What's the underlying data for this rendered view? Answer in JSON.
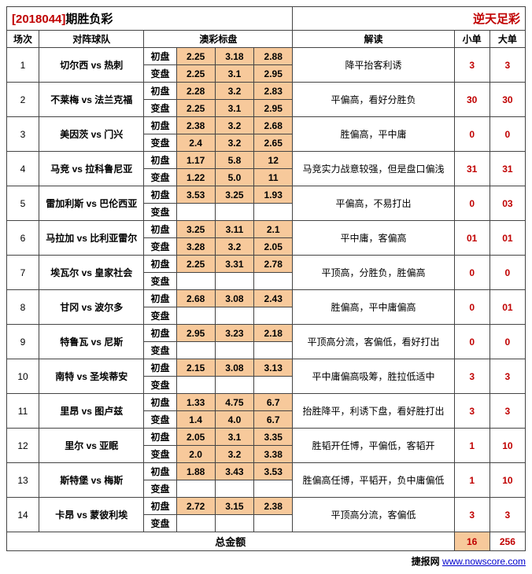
{
  "title": {
    "issue": "[2018044]",
    "suffix": "期胜负彩",
    "right": "逆天足彩"
  },
  "headers": {
    "match_no": "场次",
    "teams": "对阵球队",
    "odds": "澳彩标盘",
    "analysis": "解读",
    "small": "小单",
    "big": "大单"
  },
  "odds_labels": {
    "open": "初盘",
    "change": "变盘"
  },
  "total_label": "总金额",
  "total_small": "16",
  "total_big": "256",
  "footer": {
    "site": "捷报网",
    "url": "www.nowscore.com"
  },
  "colors": {
    "odds_bg": "#f7c99b",
    "red": "#c00000"
  },
  "col_widths": {
    "no": 40,
    "team": 130,
    "label": 40,
    "odd": 48,
    "analysis": 200,
    "pick": 44
  },
  "rows": [
    {
      "no": "1",
      "teams": "切尔西 vs 热刺",
      "open": [
        "2.25",
        "3.18",
        "2.88"
      ],
      "change": [
        "2.25",
        "3.1",
        "2.95"
      ],
      "analysis": "降平抬客利诱",
      "small": "3",
      "big": "3"
    },
    {
      "no": "2",
      "teams": "不莱梅 vs 法兰克福",
      "open": [
        "2.28",
        "3.2",
        "2.83"
      ],
      "change": [
        "2.25",
        "3.1",
        "2.95"
      ],
      "analysis": "平偏高，看好分胜负",
      "small": "30",
      "big": "30"
    },
    {
      "no": "3",
      "teams": "美因茨 vs 门兴",
      "open": [
        "2.38",
        "3.2",
        "2.68"
      ],
      "change": [
        "2.4",
        "3.2",
        "2.65"
      ],
      "analysis": "胜偏高，平中庸",
      "small": "0",
      "big": "0"
    },
    {
      "no": "4",
      "teams": "马竞 vs 拉科鲁尼亚",
      "open": [
        "1.17",
        "5.8",
        "12"
      ],
      "change": [
        "1.22",
        "5.0",
        "11"
      ],
      "analysis": "马竞实力战意较强，但是盘口偏浅",
      "small": "31",
      "big": "31"
    },
    {
      "no": "5",
      "teams": "雷加利斯 vs 巴伦西亚",
      "open": [
        "3.53",
        "3.25",
        "1.93"
      ],
      "change": [
        "",
        "",
        ""
      ],
      "analysis": "平偏高，不易打出",
      "small": "0",
      "big": "03"
    },
    {
      "no": "6",
      "teams": "马拉加 vs 比利亚雷尔",
      "open": [
        "3.25",
        "3.11",
        "2.1"
      ],
      "change": [
        "3.28",
        "3.2",
        "2.05"
      ],
      "analysis": "平中庸，客偏高",
      "small": "01",
      "big": "01"
    },
    {
      "no": "7",
      "teams": "埃瓦尔 vs 皇家社会",
      "open": [
        "2.25",
        "3.31",
        "2.78"
      ],
      "change": [
        "",
        "",
        ""
      ],
      "analysis": "平顶高，分胜负，胜偏高",
      "small": "0",
      "big": "0"
    },
    {
      "no": "8",
      "teams": "甘冈 vs 波尔多",
      "open": [
        "2.68",
        "3.08",
        "2.43"
      ],
      "change": [
        "",
        "",
        ""
      ],
      "analysis": "胜偏高，平中庸偏高",
      "small": "0",
      "big": "01"
    },
    {
      "no": "9",
      "teams": "特鲁瓦 vs 尼斯",
      "open": [
        "2.95",
        "3.23",
        "2.18"
      ],
      "change": [
        "",
        "",
        ""
      ],
      "analysis": "平顶高分流，客偏低，看好打出",
      "small": "0",
      "big": "0"
    },
    {
      "no": "10",
      "teams": "南特 vs 圣埃蒂安",
      "open": [
        "2.15",
        "3.08",
        "3.13"
      ],
      "change": [
        "",
        "",
        ""
      ],
      "analysis": "平中庸偏高吸筹，胜拉低适中",
      "small": "3",
      "big": "3"
    },
    {
      "no": "11",
      "teams": "里昂 vs 图卢兹",
      "open": [
        "1.33",
        "4.75",
        "6.7"
      ],
      "change": [
        "1.4",
        "4.0",
        "6.7"
      ],
      "analysis": "抬胜降平，利诱下盘，看好胜打出",
      "small": "3",
      "big": "3"
    },
    {
      "no": "12",
      "teams": "里尔 vs 亚眠",
      "open": [
        "2.05",
        "3.1",
        "3.35"
      ],
      "change": [
        "2.0",
        "3.2",
        "3.38"
      ],
      "analysis": "胜韬开任博，平偏低，客韬开",
      "small": "1",
      "big": "10"
    },
    {
      "no": "13",
      "teams": "斯特堡 vs 梅斯",
      "open": [
        "1.88",
        "3.43",
        "3.53"
      ],
      "change": [
        "",
        "",
        ""
      ],
      "analysis": "胜偏高任博，平韬开，负中庸偏低",
      "small": "1",
      "big": "10"
    },
    {
      "no": "14",
      "teams": "卡昂 vs 蒙彼利埃",
      "open": [
        "2.72",
        "3.15",
        "2.38"
      ],
      "change": [
        "",
        "",
        ""
      ],
      "analysis": "平顶高分流，客偏低",
      "small": "3",
      "big": "3"
    }
  ]
}
